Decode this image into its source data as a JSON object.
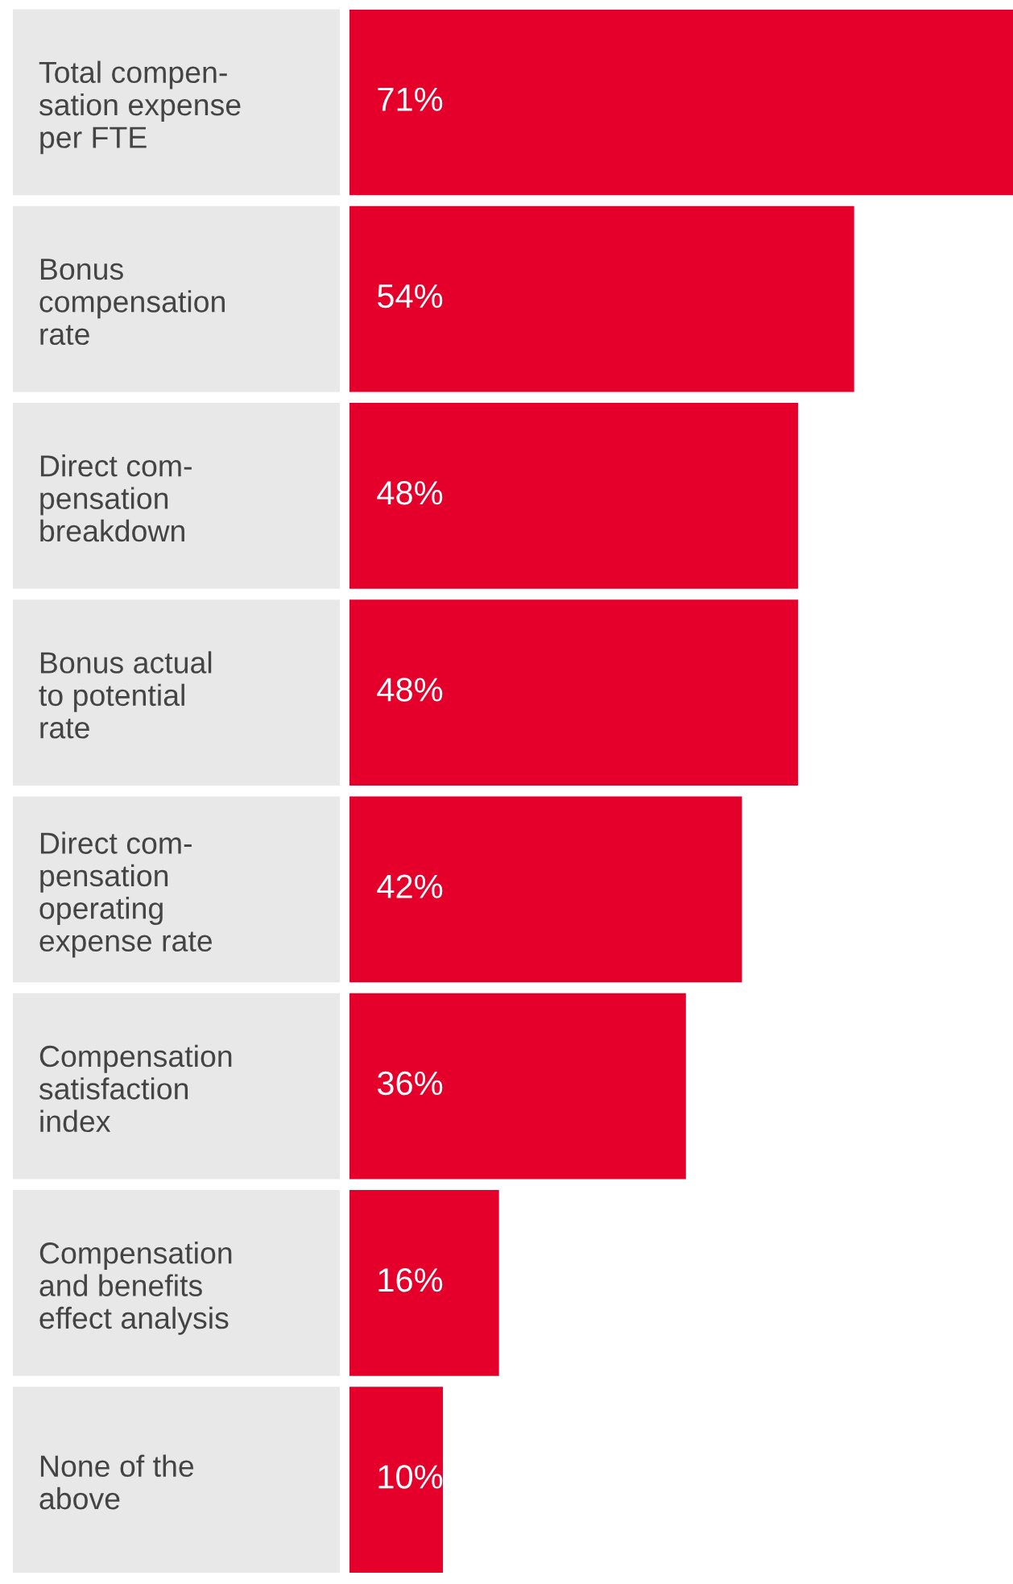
{
  "chart_data": {
    "type": "bar",
    "orientation": "horizontal",
    "categories": [
      "Total compen-\nsation expense\nper FTE",
      "Bonus\ncompensation\nrate",
      "Direct com-\npensation\nbreakdown",
      "Bonus actual\nto potential\nrate",
      "Direct com-\npensation\noperating\nexpense rate",
      "Compensation\nsatisfaction\nindex",
      "Compensation\nand benefits\neffect analysis",
      "None of the\nabove"
    ],
    "values": [
      71,
      54,
      48,
      48,
      42,
      36,
      16,
      10
    ],
    "value_labels": [
      "71%",
      "54%",
      "48%",
      "48%",
      "42%",
      "36%",
      "16%",
      "10%"
    ],
    "color": "#e4002b",
    "xlim": [
      0,
      71
    ],
    "tick_labels": "y",
    "grid": false,
    "legend": false
  }
}
